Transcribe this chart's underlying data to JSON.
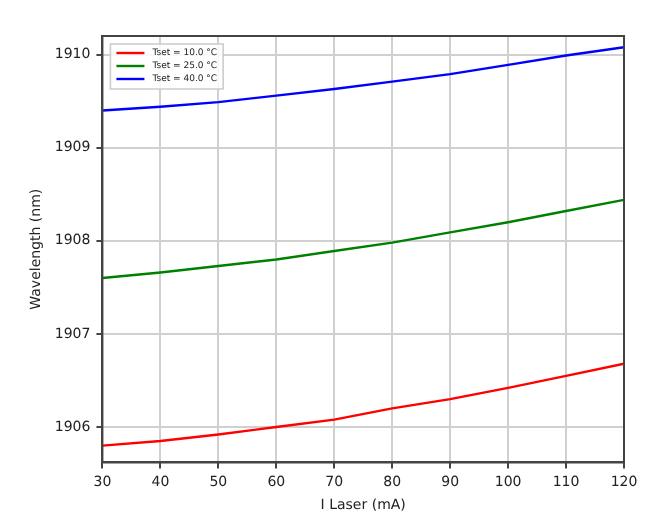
{
  "chart_data": {
    "type": "line",
    "xlabel": "I Laser (mA)",
    "ylabel": "Wavelength (nm)",
    "x": [
      30,
      40,
      50,
      60,
      70,
      80,
      90,
      100,
      110,
      120
    ],
    "series": [
      {
        "name": "Tset = 10.0 °C",
        "color": "#ff0000",
        "values": [
          1905.8,
          1905.85,
          1905.92,
          1906.0,
          1906.08,
          1906.2,
          1906.3,
          1906.42,
          1906.55,
          1906.68
        ]
      },
      {
        "name": "Tset = 25.0 °C",
        "color": "#008000",
        "values": [
          1907.6,
          1907.66,
          1907.73,
          1907.8,
          1907.89,
          1907.98,
          1908.09,
          1908.2,
          1908.32,
          1908.44
        ]
      },
      {
        "name": "Tset = 40.0 °C",
        "color": "#0000ff",
        "values": [
          1909.4,
          1909.44,
          1909.49,
          1909.56,
          1909.63,
          1909.71,
          1909.79,
          1909.89,
          1909.99,
          1910.08
        ]
      }
    ],
    "xlim": [
      30,
      120
    ],
    "xticks": [
      30,
      40,
      50,
      60,
      70,
      80,
      90,
      100,
      110,
      120
    ],
    "ylim": [
      1905.62,
      1910.2
    ],
    "yticks": [
      1906,
      1907,
      1908,
      1909,
      1910
    ],
    "grid": true,
    "legend": "top left",
    "marker": "none",
    "line_style": "solid"
  }
}
